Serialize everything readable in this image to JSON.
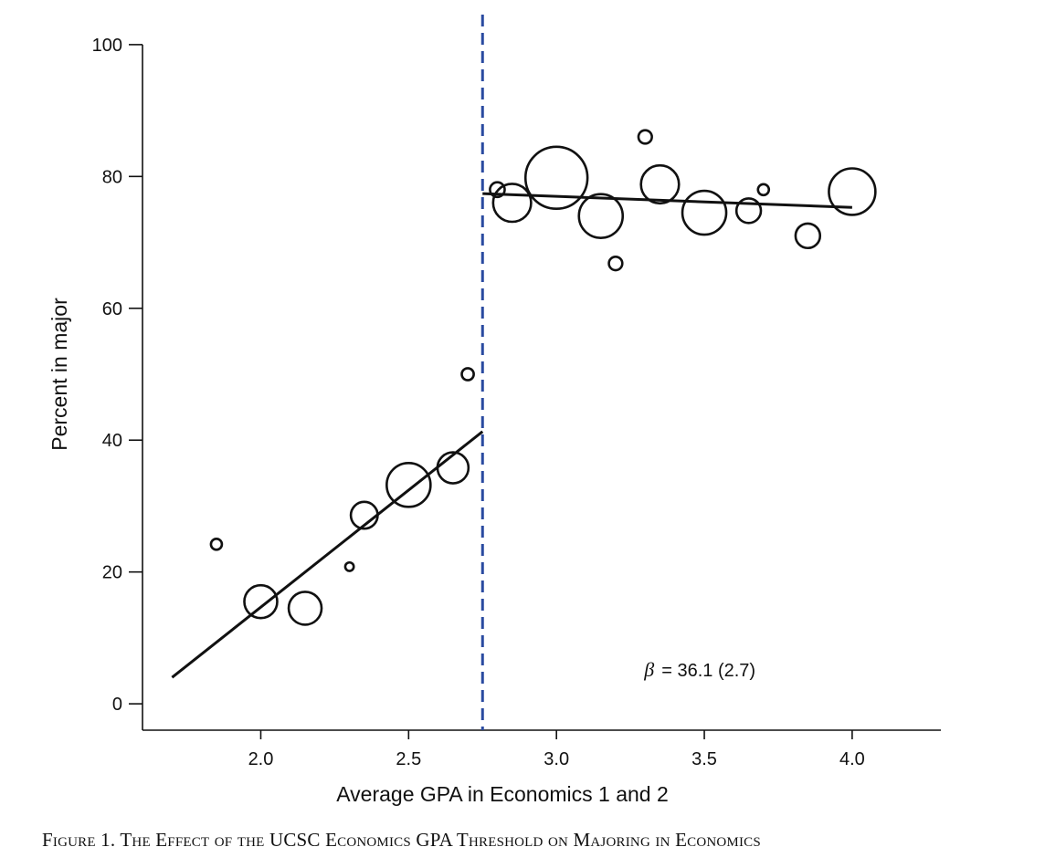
{
  "chart_data": {
    "type": "scatter",
    "xlabel": "Average GPA in Economics 1 and 2",
    "ylabel": "Percent in major",
    "xlim": [
      1.6,
      4.3
    ],
    "ylim": [
      -4,
      104
    ],
    "xticks": [
      "2.0",
      "2.5",
      "3.0",
      "3.5",
      "4.0"
    ],
    "xtick_values": [
      2.0,
      2.5,
      3.0,
      3.5,
      4.0
    ],
    "yticks": [
      "0",
      "20",
      "40",
      "60",
      "80",
      "100"
    ],
    "ytick_values": [
      0,
      20,
      40,
      60,
      80,
      100
    ],
    "threshold": {
      "x": 2.75,
      "style": "dashed",
      "color": "#2a4aa0"
    },
    "points": [
      {
        "x": 1.85,
        "y": 24.2,
        "weight": 1
      },
      {
        "x": 2.0,
        "y": 15.5,
        "weight": 9
      },
      {
        "x": 2.15,
        "y": 14.5,
        "weight": 9
      },
      {
        "x": 2.3,
        "y": 20.8,
        "weight": 0.6
      },
      {
        "x": 2.35,
        "y": 28.6,
        "weight": 6
      },
      {
        "x": 2.5,
        "y": 33.2,
        "weight": 16
      },
      {
        "x": 2.65,
        "y": 35.8,
        "weight": 8
      },
      {
        "x": 2.7,
        "y": 50.0,
        "weight": 1.2
      },
      {
        "x": 2.8,
        "y": 78.0,
        "weight": 1.8
      },
      {
        "x": 2.85,
        "y": 76.0,
        "weight": 12
      },
      {
        "x": 3.0,
        "y": 79.8,
        "weight": 32
      },
      {
        "x": 3.15,
        "y": 74.0,
        "weight": 16
      },
      {
        "x": 3.2,
        "y": 66.8,
        "weight": 1.5
      },
      {
        "x": 3.3,
        "y": 86.0,
        "weight": 1.5
      },
      {
        "x": 3.35,
        "y": 78.8,
        "weight": 12
      },
      {
        "x": 3.5,
        "y": 74.5,
        "weight": 16
      },
      {
        "x": 3.65,
        "y": 74.8,
        "weight": 5
      },
      {
        "x": 3.7,
        "y": 78.0,
        "weight": 1
      },
      {
        "x": 3.85,
        "y": 71.0,
        "weight": 5
      },
      {
        "x": 4.0,
        "y": 77.7,
        "weight": 18
      }
    ],
    "fit_lines": [
      {
        "x": [
          1.7,
          2.75
        ],
        "y": [
          4.0,
          41.3
        ]
      },
      {
        "x": [
          2.75,
          4.0
        ],
        "y": [
          77.4,
          75.3
        ]
      }
    ],
    "annotation": {
      "symbol": "β",
      "text": "= 36.1 (2.7)",
      "x": 3.3,
      "y": 5
    }
  },
  "caption": "Figure 1. The Effect of the UCSC Economics GPA Threshold on Majoring in Economics"
}
